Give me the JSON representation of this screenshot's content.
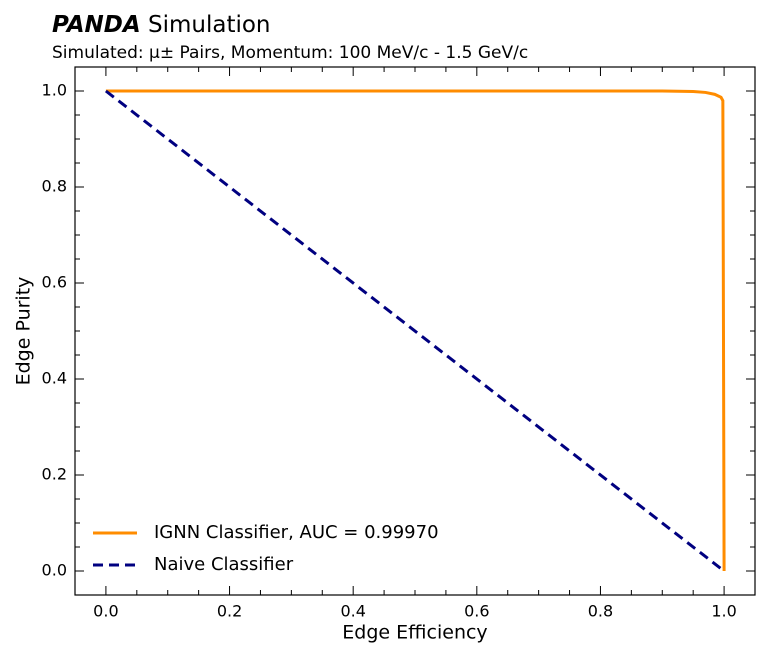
{
  "chart_data": {
    "type": "line",
    "title_bold": "PANDA",
    "title": "Simulation",
    "subtitle": "Simulated: μ± Pairs, Momentum: 100 MeV/c - 1.5 GeV/c",
    "xlabel": "Edge Efficiency",
    "ylabel": "Edge Purity",
    "xlim": [
      -0.05,
      1.05
    ],
    "ylim": [
      -0.05,
      1.05
    ],
    "xticks": [
      {
        "value": 0,
        "label": "0.0"
      },
      {
        "value": 0.2,
        "label": "0.2"
      },
      {
        "value": 0.4,
        "label": "0.4"
      },
      {
        "value": 0.6,
        "label": "0.6"
      },
      {
        "value": 0.8,
        "label": "0.8"
      },
      {
        "value": 1,
        "label": "1.0"
      }
    ],
    "yticks": [
      {
        "value": 0,
        "label": "0.0"
      },
      {
        "value": 0.2,
        "label": "0.2"
      },
      {
        "value": 0.4,
        "label": "0.4"
      },
      {
        "value": 0.6,
        "label": "0.6"
      },
      {
        "value": 0.8,
        "label": "0.8"
      },
      {
        "value": 1,
        "label": "1.0"
      }
    ],
    "xminorticks": [
      -0.05,
      0.05,
      0.1,
      0.15,
      0.25,
      0.3,
      0.35,
      0.45,
      0.5,
      0.55,
      0.65,
      0.7,
      0.75,
      0.85,
      0.9,
      0.95,
      1.05
    ],
    "yminorticks": [
      0.05,
      0.1,
      0.15,
      0.25,
      0.3,
      0.35,
      0.45,
      0.5,
      0.55,
      0.65,
      0.7,
      0.75,
      0.85,
      0.9,
      0.95
    ],
    "legend": "lower left",
    "series": [
      {
        "name": "IGNN Classifier, AUC = 0.99970",
        "color": "#ff8c00",
        "dash": false,
        "x": [
          0,
          0.5,
          0.9,
          0.95,
          0.97,
          0.985,
          0.995,
          0.998,
          0.999,
          1.0
        ],
        "values": [
          1,
          1,
          1,
          0.999,
          0.997,
          0.993,
          0.987,
          0.98,
          0.5,
          0
        ]
      },
      {
        "name": "Naive Classifier",
        "color": "#000080",
        "dash": true,
        "x": [
          0,
          1
        ],
        "values": [
          1,
          0
        ]
      }
    ]
  }
}
